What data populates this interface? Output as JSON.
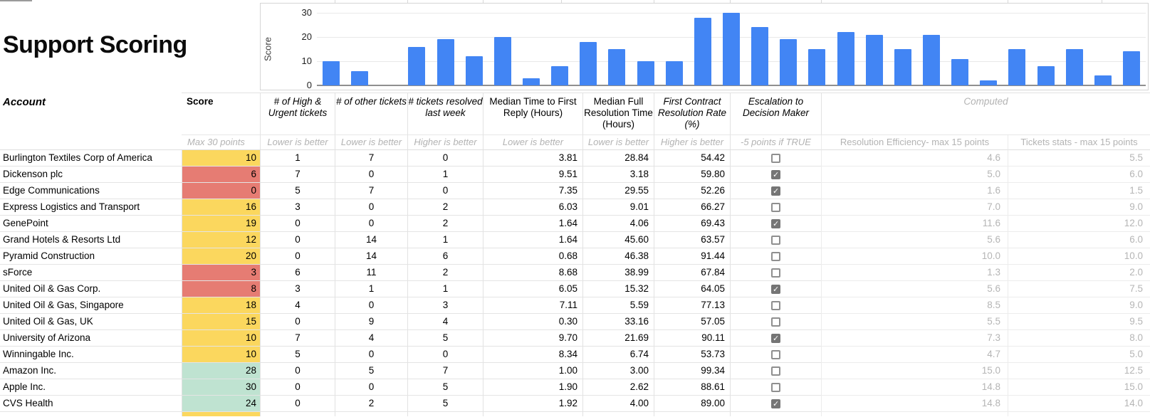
{
  "title": "Support Scoring",
  "icons": {
    "check_glyph": "✓"
  },
  "colors": {
    "bar_blue": "#4285f4",
    "score_yellow": "#fbd75e",
    "score_red": "#e67c73",
    "score_green": "#bfe3d1",
    "checkbox_checked_gray": "#757575"
  },
  "chart_data": {
    "type": "bar",
    "title": "",
    "ylabel": "Score",
    "xlabel": "",
    "yticks": [
      0,
      10,
      20,
      30
    ],
    "ylim": [
      0,
      30
    ],
    "grid": true,
    "values": [
      10,
      6,
      0,
      16,
      19,
      12,
      20,
      3,
      8,
      18,
      15,
      10,
      10,
      28,
      30,
      24,
      19,
      15,
      22,
      21,
      15,
      21,
      11,
      2,
      15,
      8,
      15,
      4,
      14
    ]
  },
  "table": {
    "columns": {
      "account": {
        "label": "Account",
        "sub": ""
      },
      "score": {
        "label": "Score",
        "sub": "Max 30 points"
      },
      "high_urgent": {
        "label": "# of High & Urgent tickets",
        "sub": "Lower is better"
      },
      "other_tickets": {
        "label": "# of other tickets",
        "sub": "Lower is better"
      },
      "resolved_last_week": {
        "label": "# tickets resolved last week",
        "sub": "Higher is better"
      },
      "first_reply": {
        "label": "Median Time to First Reply (Hours)",
        "sub": "Lower is better"
      },
      "full_resolution": {
        "label": "Median Full Resolution Time (Hours)",
        "sub": "Lower is better"
      },
      "fcr_rate": {
        "label": "First Contract Resolution Rate (%)",
        "sub": "Higher is better"
      },
      "escalation": {
        "label": "Escalation to Decision Maker",
        "sub": "-5 points if TRUE"
      },
      "computed": {
        "label": "Computed",
        "sub_left": "Resolution Efficiency- max 15 points",
        "sub_right": "Tickets stats - max 15 points"
      }
    },
    "rows": [
      {
        "account": "Burlington Textiles Corp of America",
        "score": "10",
        "score_color": "yellow",
        "high_urgent": "1",
        "other_tickets": "7",
        "resolved_last_week": "0",
        "first_reply": "3.81",
        "full_resolution": "28.84",
        "fcr_rate": "54.42",
        "escalation": false,
        "resolution_efficiency": "4.6",
        "tickets_stats": "5.5"
      },
      {
        "account": "Dickenson plc",
        "score": "6",
        "score_color": "red",
        "high_urgent": "7",
        "other_tickets": "0",
        "resolved_last_week": "1",
        "first_reply": "9.51",
        "full_resolution": "3.18",
        "fcr_rate": "59.80",
        "escalation": true,
        "resolution_efficiency": "5.0",
        "tickets_stats": "6.0"
      },
      {
        "account": "Edge Communications",
        "score": "0",
        "score_color": "red",
        "high_urgent": "5",
        "other_tickets": "7",
        "resolved_last_week": "0",
        "first_reply": "7.35",
        "full_resolution": "29.55",
        "fcr_rate": "52.26",
        "escalation": true,
        "resolution_efficiency": "1.6",
        "tickets_stats": "1.5"
      },
      {
        "account": "Express Logistics and Transport",
        "score": "16",
        "score_color": "yellow",
        "high_urgent": "3",
        "other_tickets": "0",
        "resolved_last_week": "2",
        "first_reply": "6.03",
        "full_resolution": "9.01",
        "fcr_rate": "66.27",
        "escalation": false,
        "resolution_efficiency": "7.0",
        "tickets_stats": "9.0"
      },
      {
        "account": "GenePoint",
        "score": "19",
        "score_color": "yellow",
        "high_urgent": "0",
        "other_tickets": "0",
        "resolved_last_week": "2",
        "first_reply": "1.64",
        "full_resolution": "4.06",
        "fcr_rate": "69.43",
        "escalation": true,
        "resolution_efficiency": "11.6",
        "tickets_stats": "12.0"
      },
      {
        "account": "Grand Hotels & Resorts Ltd",
        "score": "12",
        "score_color": "yellow",
        "high_urgent": "0",
        "other_tickets": "14",
        "resolved_last_week": "1",
        "first_reply": "1.64",
        "full_resolution": "45.60",
        "fcr_rate": "63.57",
        "escalation": false,
        "resolution_efficiency": "5.6",
        "tickets_stats": "6.0"
      },
      {
        "account": "Pyramid Construction",
        "score": "20",
        "score_color": "yellow",
        "high_urgent": "0",
        "other_tickets": "14",
        "resolved_last_week": "6",
        "first_reply": "0.68",
        "full_resolution": "46.38",
        "fcr_rate": "91.44",
        "escalation": false,
        "resolution_efficiency": "10.0",
        "tickets_stats": "10.0"
      },
      {
        "account": "sForce",
        "score": "3",
        "score_color": "red",
        "high_urgent": "6",
        "other_tickets": "11",
        "resolved_last_week": "2",
        "first_reply": "8.68",
        "full_resolution": "38.99",
        "fcr_rate": "67.84",
        "escalation": false,
        "resolution_efficiency": "1.3",
        "tickets_stats": "2.0"
      },
      {
        "account": "United Oil & Gas Corp.",
        "score": "8",
        "score_color": "red",
        "high_urgent": "3",
        "other_tickets": "1",
        "resolved_last_week": "1",
        "first_reply": "6.05",
        "full_resolution": "15.32",
        "fcr_rate": "64.05",
        "escalation": true,
        "resolution_efficiency": "5.6",
        "tickets_stats": "7.5"
      },
      {
        "account": "United Oil & Gas, Singapore",
        "score": "18",
        "score_color": "yellow",
        "high_urgent": "4",
        "other_tickets": "0",
        "resolved_last_week": "3",
        "first_reply": "7.11",
        "full_resolution": "5.59",
        "fcr_rate": "77.13",
        "escalation": false,
        "resolution_efficiency": "8.5",
        "tickets_stats": "9.0"
      },
      {
        "account": "United Oil & Gas, UK",
        "score": "15",
        "score_color": "yellow",
        "high_urgent": "0",
        "other_tickets": "9",
        "resolved_last_week": "4",
        "first_reply": "0.30",
        "full_resolution": "33.16",
        "fcr_rate": "57.05",
        "escalation": false,
        "resolution_efficiency": "5.5",
        "tickets_stats": "9.5"
      },
      {
        "account": "University of Arizona",
        "score": "10",
        "score_color": "yellow",
        "high_urgent": "7",
        "other_tickets": "4",
        "resolved_last_week": "5",
        "first_reply": "9.70",
        "full_resolution": "21.69",
        "fcr_rate": "90.11",
        "escalation": true,
        "resolution_efficiency": "7.3",
        "tickets_stats": "8.0"
      },
      {
        "account": "Winningable Inc.",
        "score": "10",
        "score_color": "yellow",
        "high_urgent": "5",
        "other_tickets": "0",
        "resolved_last_week": "0",
        "first_reply": "8.34",
        "full_resolution": "6.74",
        "fcr_rate": "53.73",
        "escalation": false,
        "resolution_efficiency": "4.7",
        "tickets_stats": "5.0"
      },
      {
        "account": "Amazon Inc.",
        "score": "28",
        "score_color": "green",
        "high_urgent": "0",
        "other_tickets": "5",
        "resolved_last_week": "7",
        "first_reply": "1.00",
        "full_resolution": "3.00",
        "fcr_rate": "99.34",
        "escalation": false,
        "resolution_efficiency": "15.0",
        "tickets_stats": "12.5"
      },
      {
        "account": "Apple Inc.",
        "score": "30",
        "score_color": "green",
        "high_urgent": "0",
        "other_tickets": "0",
        "resolved_last_week": "5",
        "first_reply": "1.90",
        "full_resolution": "2.62",
        "fcr_rate": "88.61",
        "escalation": false,
        "resolution_efficiency": "14.8",
        "tickets_stats": "15.0"
      },
      {
        "account": "CVS Health",
        "score": "24",
        "score_color": "green",
        "high_urgent": "0",
        "other_tickets": "2",
        "resolved_last_week": "5",
        "first_reply": "1.92",
        "full_resolution": "4.00",
        "fcr_rate": "89.00",
        "escalation": true,
        "resolution_efficiency": "14.8",
        "tickets_stats": "14.0"
      }
    ],
    "partial_row": {
      "score_color": "yellow"
    }
  }
}
